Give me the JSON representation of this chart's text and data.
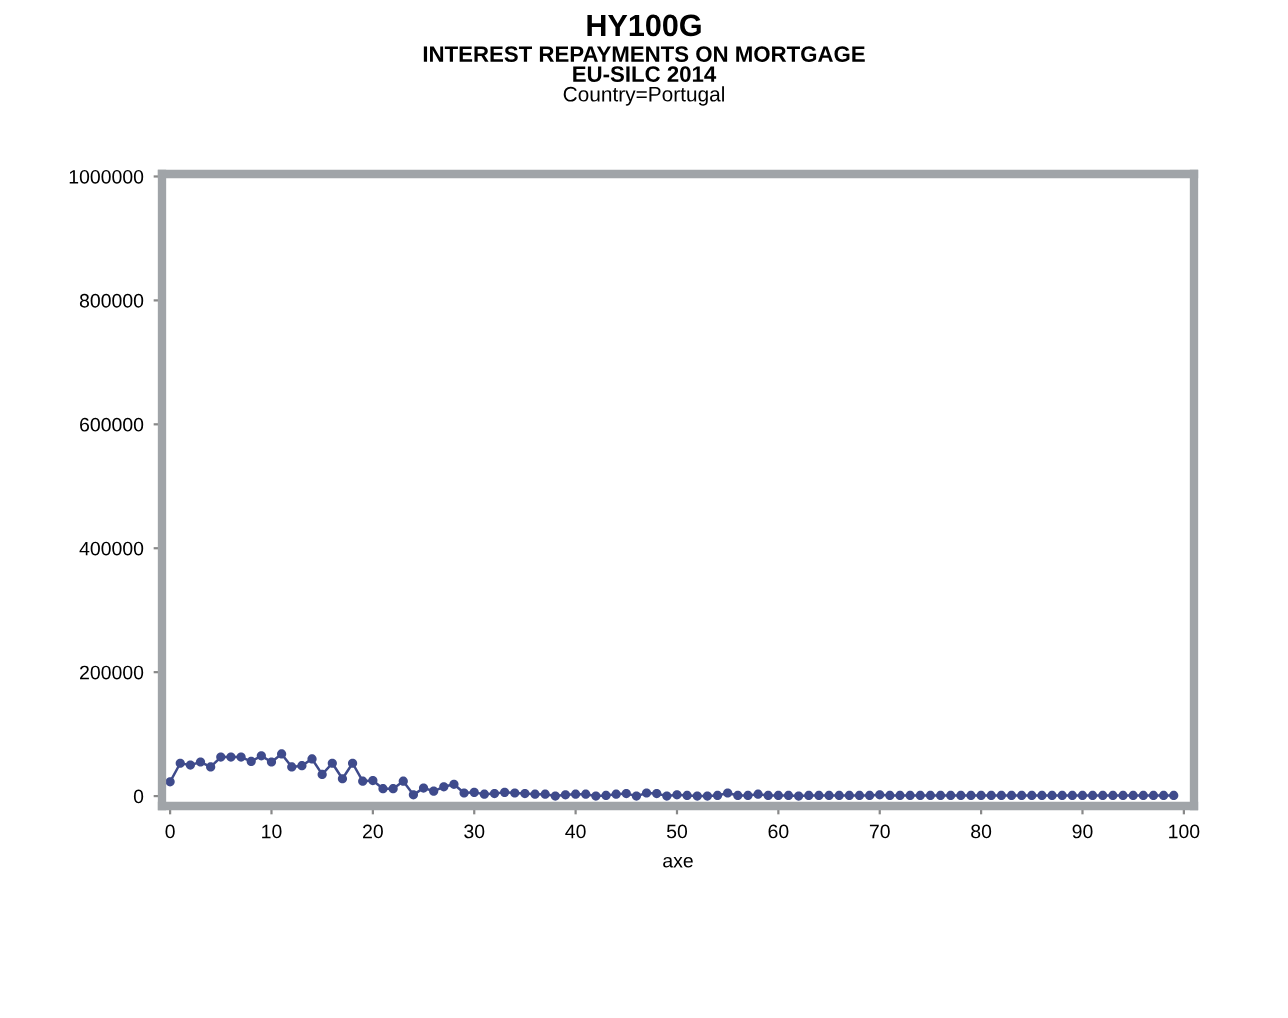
{
  "chart_data": {
    "type": "line",
    "title": "HY100G",
    "subtitle": "INTEREST REPAYMENTS ON MORTGAGE\nEU-SILC 2014",
    "annotations": [
      "Country=Portugal"
    ],
    "xlabel": "axe",
    "x": [
      0,
      1,
      2,
      3,
      4,
      5,
      6,
      7,
      8,
      9,
      10,
      11,
      12,
      13,
      14,
      15,
      16,
      17,
      18,
      19,
      20,
      21,
      22,
      23,
      24,
      25,
      26,
      27,
      28,
      29,
      30,
      31,
      32,
      33,
      34,
      35,
      36,
      37,
      38,
      39,
      40,
      41,
      42,
      43,
      44,
      45,
      46,
      47,
      48,
      49,
      50,
      51,
      52,
      53,
      54,
      55,
      56,
      57,
      58,
      59,
      60,
      61,
      62,
      63,
      64,
      65,
      66,
      67,
      68,
      69,
      70,
      71,
      72,
      73,
      74,
      75,
      76,
      77,
      78,
      79,
      80,
      81,
      82,
      83,
      84,
      85,
      86,
      87,
      88,
      89,
      90,
      91,
      92,
      93,
      94,
      95,
      96,
      97,
      98,
      99
    ],
    "series": [
      {
        "color": "#3f4b8c",
        "values": [
          23000,
          53000,
          50000,
          55000,
          47000,
          63000,
          63000,
          63000,
          56000,
          65000,
          55000,
          68000,
          47000,
          49000,
          60000,
          35000,
          53000,
          28000,
          53000,
          24000,
          25000,
          12000,
          12000,
          24000,
          2000,
          13000,
          8000,
          15000,
          19000,
          5000,
          6000,
          3000,
          4000,
          6000,
          5000,
          4000,
          3000,
          3000,
          0,
          2000,
          3000,
          3000,
          0,
          1000,
          3000,
          4000,
          0,
          5000,
          4000,
          0,
          2000,
          1000,
          0,
          0,
          1000,
          5000,
          1000,
          1000,
          3000,
          1000,
          1000,
          1000,
          0,
          1000,
          1000,
          1000,
          1000,
          1000,
          1000,
          1000,
          2000,
          1000,
          1000,
          1000,
          1000,
          1000,
          1000,
          1000,
          1000,
          1000,
          1000,
          1000,
          1000,
          1000,
          1000,
          1000,
          1000,
          1000,
          1000,
          1000,
          1000,
          1000,
          1000,
          1000,
          1000,
          1000,
          1000,
          1000,
          1000,
          1000
        ]
      }
    ],
    "marker": "circle",
    "line_style": "solid",
    "grid": false,
    "legend": false,
    "xlim": [
      -0.8,
      101
    ],
    "xticks": [
      0,
      10,
      20,
      30,
      40,
      50,
      60,
      70,
      80,
      90,
      100
    ],
    "ylim": [
      -16000,
      1004000
    ],
    "yticks": [
      0,
      200000,
      400000,
      600000,
      800000,
      1000000
    ]
  }
}
